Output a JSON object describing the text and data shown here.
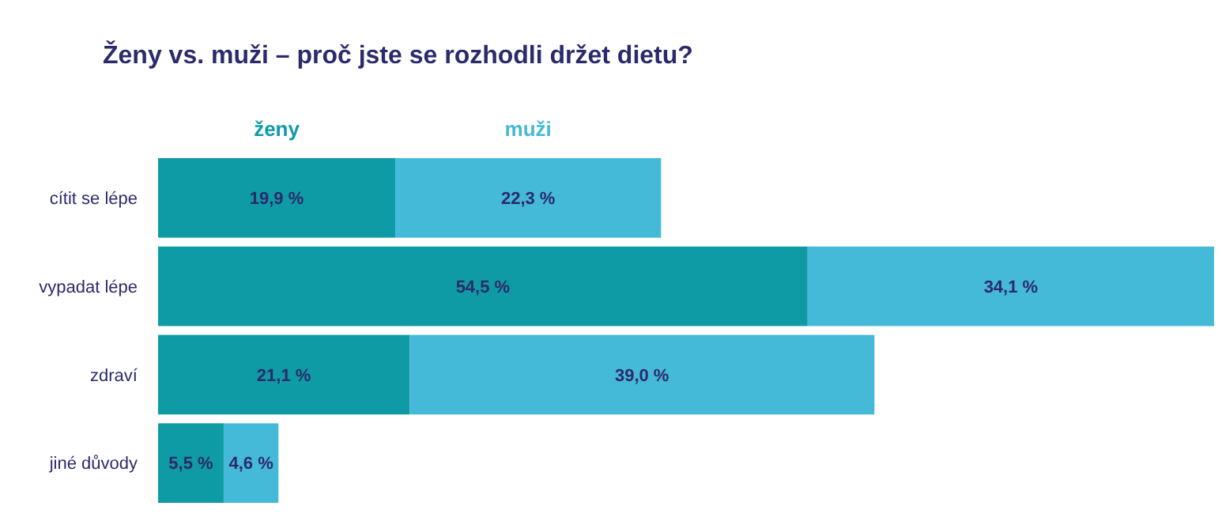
{
  "chart_data": {
    "type": "bar",
    "orientation": "horizontal",
    "stacked": true,
    "title": "Ženy vs. muži – proč jste se rozhodli držet dietu?",
    "categories": [
      "cítit se lépe",
      "vypadat lépe",
      "zdraví",
      "jiné důvody"
    ],
    "series": [
      {
        "name": "ženy",
        "color": "#0e9ba6",
        "values": [
          19.9,
          54.5,
          21.1,
          5.5
        ],
        "value_labels": [
          "19,9 %",
          "54,5 %",
          "21,1 %",
          "5,5 %"
        ]
      },
      {
        "name": "muži",
        "color": "#45b9d8",
        "values": [
          22.3,
          34.1,
          39.0,
          4.6
        ],
        "value_labels": [
          "22,3 %",
          "34,1 %",
          "39,0 %",
          "4,6 %"
        ]
      }
    ],
    "legend": "top left"
  }
}
